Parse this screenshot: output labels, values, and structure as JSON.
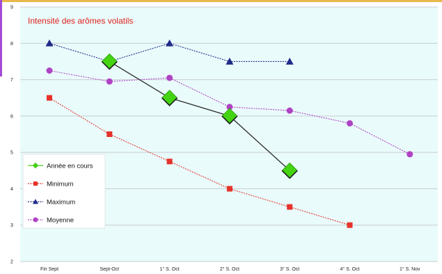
{
  "chart_data": {
    "type": "line",
    "title": "Intensité des arômes volatils",
    "xlabel": "",
    "ylabel": "",
    "ylim": [
      2,
      9
    ],
    "yticks": [
      2,
      3,
      4,
      5,
      6,
      7,
      8,
      9
    ],
    "grid": true,
    "legend_position": "bottom-left",
    "plot_background": "#e9fbfb",
    "categories": [
      "Fin Sept",
      "Sept-Oct",
      "1° S. Oct",
      "2° S. Oct",
      "3° S. Oct",
      "4° S. Oct",
      "1° S. Nov"
    ],
    "series": [
      {
        "name": "Année en cours",
        "key": "annee",
        "color": "#2b2b2b",
        "marker_color": "#44d411",
        "marker": "diamond",
        "dash": "solid",
        "values": [
          null,
          7.5,
          6.5,
          6.0,
          4.5,
          null,
          null
        ]
      },
      {
        "name": "Minimum",
        "key": "minimum",
        "color": "#e5322b",
        "marker_color": "#e5322b",
        "marker": "square",
        "dash": "dotted",
        "values": [
          6.5,
          5.5,
          4.75,
          4.0,
          3.5,
          3.0,
          null
        ]
      },
      {
        "name": "Maximum",
        "key": "maximum",
        "color": "#1f2a8a",
        "marker_color": "#1f2a8a",
        "marker": "triangle",
        "dash": "dotted",
        "values": [
          8.0,
          7.5,
          8.0,
          7.5,
          7.5,
          null,
          null
        ]
      },
      {
        "name": "Moyenne",
        "key": "moyenne",
        "color": "#b042c4",
        "marker_color": "#b042c4",
        "marker": "circle",
        "dash": "dotted",
        "values": [
          7.25,
          6.95,
          7.05,
          6.25,
          6.15,
          5.8,
          4.95
        ]
      }
    ]
  }
}
